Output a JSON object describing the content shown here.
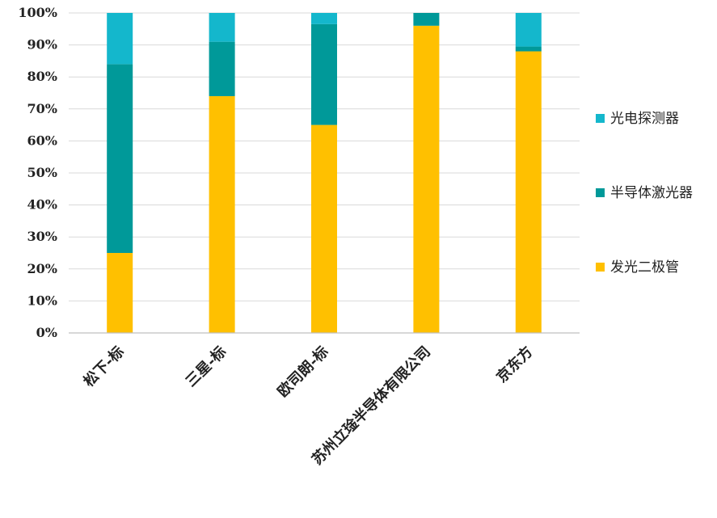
{
  "chart_data": {
    "type": "bar",
    "stacked": true,
    "percent": true,
    "categories": [
      "松下-标",
      "三星-标",
      "欧司朗-标",
      "苏州立琻半导体有限公司",
      "京东方"
    ],
    "series": [
      {
        "name": "发光二极管",
        "color": "#FFC000",
        "values": [
          25,
          74,
          65,
          96,
          88
        ]
      },
      {
        "name": "半导体激光器",
        "color": "#009999",
        "values": [
          59,
          17,
          31.5,
          4,
          1.5
        ]
      },
      {
        "name": "光电探测器",
        "color": "#14B7CC",
        "values": [
          16,
          9,
          3.5,
          0,
          10.5
        ]
      }
    ],
    "ylim": [
      0,
      100
    ],
    "y_ticks": [
      "0%",
      "10%",
      "20%",
      "30%",
      "40%",
      "50%",
      "60%",
      "70%",
      "80%",
      "90%",
      "100%"
    ],
    "grid": true,
    "legend": {
      "position": "right",
      "order": [
        "光电探测器",
        "半导体激光器",
        "发光二极管"
      ]
    }
  }
}
